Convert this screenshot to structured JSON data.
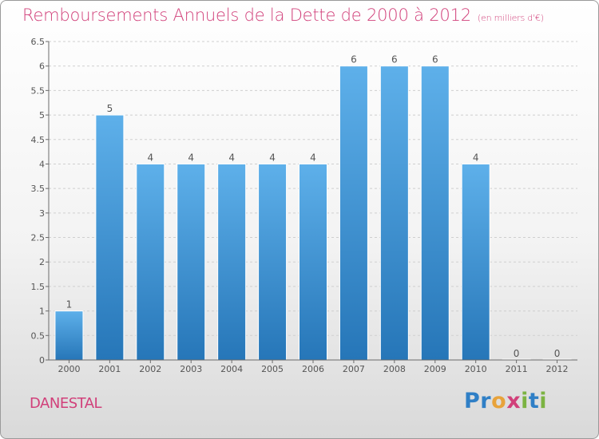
{
  "title": "Remboursements Annuels de la Dette de 2000 à 2012",
  "subtitle": "(en milliers d'€)",
  "town": "DANESTAL",
  "logo": {
    "letters": [
      {
        "ch": "P",
        "color": "#2f7fc6"
      },
      {
        "ch": "r",
        "color": "#2f7fc6"
      },
      {
        "ch": "o",
        "color": "#e8a33b"
      },
      {
        "ch": "x",
        "color": "#d1407a"
      },
      {
        "ch": "i",
        "color": "#7cb342"
      },
      {
        "ch": "t",
        "color": "#2f7fc6"
      },
      {
        "ch": "i",
        "color": "#7cb342"
      }
    ]
  },
  "colors": {
    "bar_light": "#5eb0ea",
    "bar_dark": "#2676b8",
    "axis": "#6b6b6b",
    "grid": "#cfcfcf",
    "accent": "#d1407a"
  },
  "chart_data": {
    "type": "bar",
    "title": "Remboursements Annuels de la Dette de 2000 à 2012",
    "subtitle": "(en milliers d'€)",
    "categories": [
      "2000",
      "2001",
      "2002",
      "2003",
      "2004",
      "2005",
      "2006",
      "2007",
      "2008",
      "2009",
      "2010",
      "2011",
      "2012"
    ],
    "values": [
      1,
      5,
      4,
      4,
      4,
      4,
      4,
      6,
      6,
      6,
      4,
      0,
      0
    ],
    "value_labels": [
      "1",
      "5",
      "4",
      "4",
      "4",
      "4",
      "4",
      "6",
      "6",
      "6",
      "4",
      "0",
      "0"
    ],
    "ylim": [
      0,
      6.5
    ],
    "yticks": [
      "0",
      "0.5",
      "1",
      "1.5",
      "2",
      "2.5",
      "3",
      "3.5",
      "4",
      "4.5",
      "5",
      "5.5",
      "6",
      "6.5"
    ],
    "grid": "horizontal dashed",
    "xlabel": "",
    "ylabel": ""
  }
}
